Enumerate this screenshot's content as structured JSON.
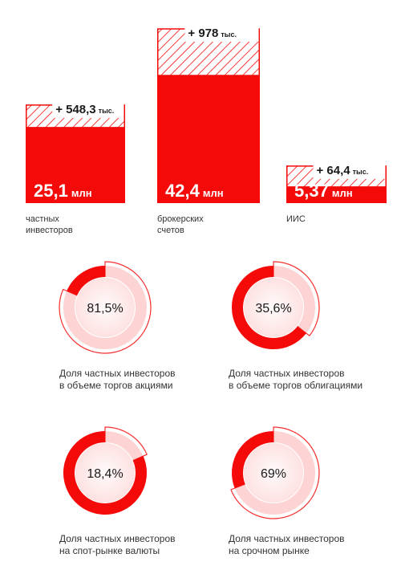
{
  "accent_color": "#f50a0a",
  "chart_data": [
    {
      "type": "bar",
      "categories": [
        "частных инвесторов",
        "брокерских счетов",
        "ИИС"
      ],
      "series": [
        {
          "values": [
            25.1,
            42.4,
            5.37
          ]
        },
        {
          "values": [
            0.5483,
            0.978,
            0.0644
          ]
        }
      ],
      "value_labels": [
        {
          "num": "25,1",
          "unit": "млн"
        },
        {
          "num": "42,4",
          "unit": "млн"
        },
        {
          "num": "5,37",
          "unit": "млн"
        }
      ],
      "increase_labels": [
        {
          "num": "+ 548,3",
          "unit": "тыс."
        },
        {
          "num": "+ 978",
          "unit": "тыс."
        },
        {
          "num": "+ 64,4",
          "unit": "тыс."
        }
      ],
      "captions": [
        [
          "частных",
          "инвесторов"
        ],
        [
          "брокерских",
          "счетов"
        ],
        [
          "ИИС"
        ]
      ]
    },
    {
      "type": "pie",
      "values": [
        81.5,
        35.6,
        18.4,
        69
      ],
      "labels": [
        "81,5%",
        "35,6%",
        "18,4%",
        "69%"
      ],
      "captions": [
        [
          "Доля частных инвесторов",
          "в объеме торгов акциями"
        ],
        [
          "Доля частных инвесторов",
          "в объеме торгов облигациями"
        ],
        [
          "Доля частных инвесторов",
          "на спот-рынке валюты"
        ],
        [
          "Доля частных инвесторов",
          "на срочном рынке"
        ]
      ]
    }
  ]
}
